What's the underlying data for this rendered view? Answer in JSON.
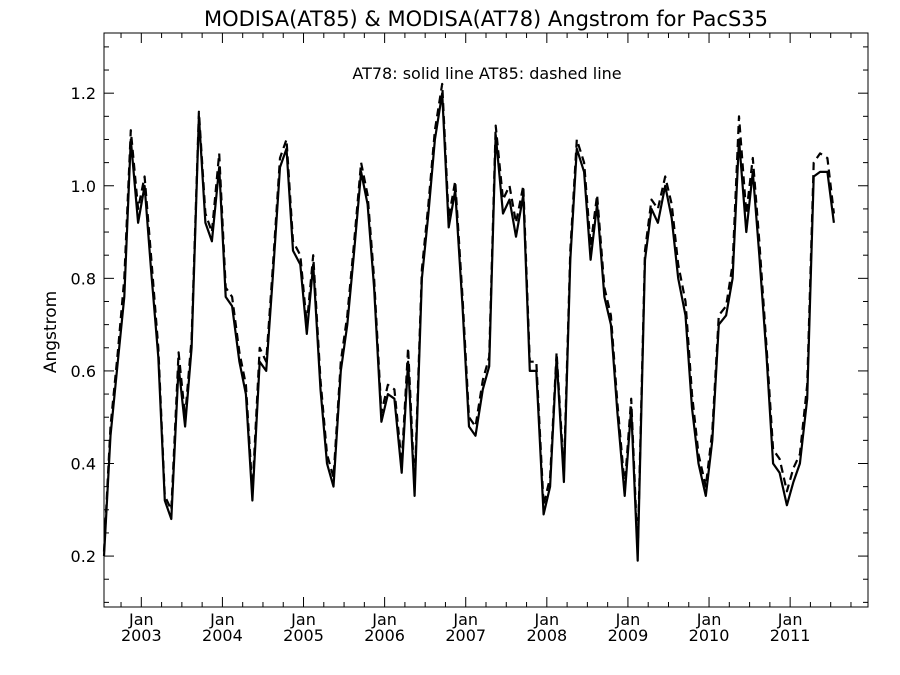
{
  "chart_data": {
    "type": "line",
    "title": "MODISA(AT85) & MODISA(AT78)  Angstrom for PacS35",
    "annotation": "AT78: solid line   AT85: dashed line",
    "ylabel": "Angstrom",
    "xlabel": "",
    "xlim": [
      2002.54,
      2011.96
    ],
    "ylim": [
      0.09,
      1.33
    ],
    "yticks": [
      0.2,
      0.4,
      0.6,
      0.8,
      1.0,
      1.2
    ],
    "ytick_labels": [
      "0.2",
      "0.4",
      "0.6",
      "0.8",
      "1.0",
      "1.2"
    ],
    "xticks": [
      {
        "x": 2003.0,
        "month": "Jan",
        "year": "2003"
      },
      {
        "x": 2004.0,
        "month": "Jan",
        "year": "2004"
      },
      {
        "x": 2005.0,
        "month": "Jan",
        "year": "2005"
      },
      {
        "x": 2006.0,
        "month": "Jan",
        "year": "2006"
      },
      {
        "x": 2007.0,
        "month": "Jan",
        "year": "2007"
      },
      {
        "x": 2008.0,
        "month": "Jan",
        "year": "2008"
      },
      {
        "x": 2009.0,
        "month": "Jan",
        "year": "2009"
      },
      {
        "x": 2010.0,
        "month": "Jan",
        "year": "2010"
      },
      {
        "x": 2011.0,
        "month": "Jan",
        "year": "2011"
      }
    ],
    "grid": false,
    "series": [
      {
        "name": "AT78",
        "style": "solid",
        "color": "#000000",
        "points": [
          [
            2002.54,
            0.2
          ],
          [
            2002.62,
            0.46
          ],
          [
            2002.71,
            0.62
          ],
          [
            2002.79,
            0.76
          ],
          [
            2002.87,
            1.1
          ],
          [
            2002.96,
            0.92
          ],
          [
            2003.04,
            1.0
          ],
          [
            2003.12,
            0.82
          ],
          [
            2003.21,
            0.63
          ],
          [
            2003.29,
            0.32
          ],
          [
            2003.37,
            0.28
          ],
          [
            2003.46,
            0.61
          ],
          [
            2003.54,
            0.48
          ],
          [
            2003.62,
            0.65
          ],
          [
            2003.71,
            1.15
          ],
          [
            2003.79,
            0.92
          ],
          [
            2003.87,
            0.88
          ],
          [
            2003.96,
            1.04
          ],
          [
            2004.04,
            0.76
          ],
          [
            2004.12,
            0.74
          ],
          [
            2004.21,
            0.62
          ],
          [
            2004.29,
            0.55
          ],
          [
            2004.37,
            0.32
          ],
          [
            2004.46,
            0.62
          ],
          [
            2004.54,
            0.6
          ],
          [
            2004.62,
            0.8
          ],
          [
            2004.71,
            1.04
          ],
          [
            2004.79,
            1.08
          ],
          [
            2004.87,
            0.86
          ],
          [
            2004.96,
            0.83
          ],
          [
            2005.04,
            0.68
          ],
          [
            2005.12,
            0.83
          ],
          [
            2005.21,
            0.56
          ],
          [
            2005.29,
            0.4
          ],
          [
            2005.37,
            0.35
          ],
          [
            2005.46,
            0.6
          ],
          [
            2005.54,
            0.7
          ],
          [
            2005.62,
            0.85
          ],
          [
            2005.71,
            1.03
          ],
          [
            2005.79,
            0.96
          ],
          [
            2005.87,
            0.78
          ],
          [
            2005.96,
            0.49
          ],
          [
            2006.04,
            0.55
          ],
          [
            2006.12,
            0.54
          ],
          [
            2006.21,
            0.38
          ],
          [
            2006.29,
            0.62
          ],
          [
            2006.37,
            0.33
          ],
          [
            2006.46,
            0.8
          ],
          [
            2006.54,
            0.94
          ],
          [
            2006.62,
            1.1
          ],
          [
            2006.71,
            1.2
          ],
          [
            2006.79,
            0.91
          ],
          [
            2006.87,
            0.99
          ],
          [
            2006.96,
            0.74
          ],
          [
            2007.04,
            0.48
          ],
          [
            2007.12,
            0.46
          ],
          [
            2007.21,
            0.56
          ],
          [
            2007.29,
            0.61
          ],
          [
            2007.37,
            1.11
          ],
          [
            2007.46,
            0.94
          ],
          [
            2007.54,
            0.97
          ],
          [
            2007.62,
            0.89
          ],
          [
            2007.71,
            0.98
          ],
          [
            2007.79,
            0.6
          ],
          [
            2007.87,
            0.6
          ],
          [
            2007.96,
            0.29
          ],
          [
            2008.04,
            0.35
          ],
          [
            2008.12,
            0.63
          ],
          [
            2008.21,
            0.36
          ],
          [
            2008.29,
            0.84
          ],
          [
            2008.37,
            1.08
          ],
          [
            2008.46,
            1.03
          ],
          [
            2008.54,
            0.84
          ],
          [
            2008.62,
            0.96
          ],
          [
            2008.71,
            0.76
          ],
          [
            2008.79,
            0.7
          ],
          [
            2008.87,
            0.51
          ],
          [
            2008.96,
            0.33
          ],
          [
            2009.04,
            0.52
          ],
          [
            2009.12,
            0.19
          ],
          [
            2009.21,
            0.84
          ],
          [
            2009.29,
            0.95
          ],
          [
            2009.37,
            0.92
          ],
          [
            2009.46,
            1.0
          ],
          [
            2009.54,
            0.93
          ],
          [
            2009.62,
            0.8
          ],
          [
            2009.71,
            0.72
          ],
          [
            2009.79,
            0.52
          ],
          [
            2009.87,
            0.4
          ],
          [
            2009.96,
            0.33
          ],
          [
            2010.04,
            0.45
          ],
          [
            2010.12,
            0.7
          ],
          [
            2010.21,
            0.72
          ],
          [
            2010.29,
            0.8
          ],
          [
            2010.37,
            1.1
          ],
          [
            2010.46,
            0.9
          ],
          [
            2010.54,
            1.03
          ],
          [
            2010.62,
            0.85
          ],
          [
            2010.71,
            0.63
          ],
          [
            2010.79,
            0.4
          ],
          [
            2010.87,
            0.38
          ],
          [
            2010.96,
            0.31
          ],
          [
            2011.04,
            0.36
          ],
          [
            2011.12,
            0.4
          ],
          [
            2011.21,
            0.54
          ],
          [
            2011.29,
            1.02
          ],
          [
            2011.37,
            1.03
          ],
          [
            2011.46,
            1.03
          ],
          [
            2011.54,
            0.92
          ]
        ]
      },
      {
        "name": "AT85",
        "style": "dashed",
        "color": "#000000",
        "points": [
          [
            2002.54,
            0.21
          ],
          [
            2002.62,
            0.48
          ],
          [
            2002.71,
            0.64
          ],
          [
            2002.79,
            0.8
          ],
          [
            2002.87,
            1.12
          ],
          [
            2002.96,
            0.95
          ],
          [
            2003.04,
            1.02
          ],
          [
            2003.12,
            0.85
          ],
          [
            2003.21,
            0.65
          ],
          [
            2003.29,
            0.33
          ],
          [
            2003.37,
            0.3
          ],
          [
            2003.46,
            0.64
          ],
          [
            2003.54,
            0.5
          ],
          [
            2003.62,
            0.67
          ],
          [
            2003.71,
            1.16
          ],
          [
            2003.79,
            0.94
          ],
          [
            2003.87,
            0.9
          ],
          [
            2003.96,
            1.07
          ],
          [
            2004.04,
            0.78
          ],
          [
            2004.12,
            0.76
          ],
          [
            2004.21,
            0.64
          ],
          [
            2004.29,
            0.57
          ],
          [
            2004.37,
            0.34
          ],
          [
            2004.46,
            0.65
          ],
          [
            2004.54,
            0.62
          ],
          [
            2004.62,
            0.82
          ],
          [
            2004.71,
            1.06
          ],
          [
            2004.79,
            1.1
          ],
          [
            2004.87,
            0.88
          ],
          [
            2004.96,
            0.85
          ],
          [
            2005.04,
            0.7
          ],
          [
            2005.12,
            0.85
          ],
          [
            2005.21,
            0.58
          ],
          [
            2005.29,
            0.42
          ],
          [
            2005.37,
            0.37
          ],
          [
            2005.46,
            0.62
          ],
          [
            2005.54,
            0.72
          ],
          [
            2005.62,
            0.87
          ],
          [
            2005.71,
            1.05
          ],
          [
            2005.79,
            0.98
          ],
          [
            2005.87,
            0.8
          ],
          [
            2005.96,
            0.51
          ],
          [
            2006.04,
            0.57
          ],
          [
            2006.12,
            0.56
          ],
          [
            2006.21,
            0.4
          ],
          [
            2006.29,
            0.65
          ],
          [
            2006.37,
            0.35
          ],
          [
            2006.46,
            0.82
          ],
          [
            2006.54,
            0.96
          ],
          [
            2006.62,
            1.12
          ],
          [
            2006.71,
            1.22
          ],
          [
            2006.79,
            0.93
          ],
          [
            2006.87,
            1.01
          ],
          [
            2006.96,
            0.76
          ],
          [
            2007.04,
            0.5
          ],
          [
            2007.12,
            0.48
          ],
          [
            2007.21,
            0.58
          ],
          [
            2007.29,
            0.63
          ],
          [
            2007.37,
            1.13
          ],
          [
            2007.46,
            0.97
          ],
          [
            2007.54,
            1.0
          ],
          [
            2007.62,
            0.92
          ],
          [
            2007.71,
            1.0
          ],
          [
            2007.79,
            0.62
          ],
          [
            2007.87,
            0.62
          ],
          [
            2007.96,
            0.31
          ],
          [
            2008.04,
            0.37
          ],
          [
            2008.12,
            0.64
          ],
          [
            2008.21,
            0.38
          ],
          [
            2008.29,
            0.86
          ],
          [
            2008.37,
            1.1
          ],
          [
            2008.46,
            1.05
          ],
          [
            2008.54,
            0.87
          ],
          [
            2008.62,
            0.98
          ],
          [
            2008.71,
            0.78
          ],
          [
            2008.79,
            0.72
          ],
          [
            2008.87,
            0.53
          ],
          [
            2008.96,
            0.35
          ],
          [
            2009.04,
            0.54
          ],
          [
            2009.12,
            0.21
          ],
          [
            2009.21,
            0.86
          ],
          [
            2009.29,
            0.97
          ],
          [
            2009.37,
            0.95
          ],
          [
            2009.46,
            1.02
          ],
          [
            2009.54,
            0.96
          ],
          [
            2009.62,
            0.83
          ],
          [
            2009.71,
            0.75
          ],
          [
            2009.79,
            0.55
          ],
          [
            2009.87,
            0.42
          ],
          [
            2009.96,
            0.35
          ],
          [
            2010.04,
            0.47
          ],
          [
            2010.12,
            0.72
          ],
          [
            2010.21,
            0.74
          ],
          [
            2010.29,
            0.83
          ],
          [
            2010.37,
            1.15
          ],
          [
            2010.46,
            0.94
          ],
          [
            2010.54,
            1.06
          ],
          [
            2010.62,
            0.88
          ],
          [
            2010.71,
            0.65
          ],
          [
            2010.79,
            0.43
          ],
          [
            2010.87,
            0.41
          ],
          [
            2010.96,
            0.34
          ],
          [
            2011.04,
            0.39
          ],
          [
            2011.12,
            0.42
          ],
          [
            2011.21,
            0.57
          ],
          [
            2011.29,
            1.05
          ],
          [
            2011.37,
            1.07
          ],
          [
            2011.46,
            1.06
          ],
          [
            2011.54,
            0.94
          ]
        ]
      }
    ]
  }
}
